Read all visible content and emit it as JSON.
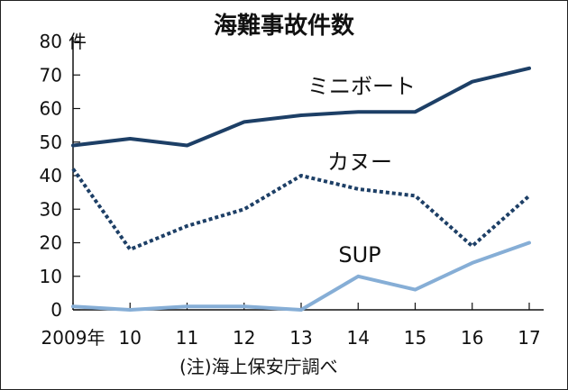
{
  "chart_data": {
    "type": "line",
    "title": "海難事故件数",
    "ylabel": "件",
    "xlabel": "",
    "categories": [
      "2009年",
      "10",
      "11",
      "12",
      "13",
      "14",
      "15",
      "16",
      "17"
    ],
    "ylim": [
      0,
      80
    ],
    "yticks": [
      "0",
      "10",
      "20",
      "30",
      "40",
      "50",
      "60",
      "70",
      "80"
    ],
    "grid": false,
    "series": [
      {
        "name": "ミニボート",
        "values": [
          49,
          51,
          49,
          56,
          58,
          59,
          59,
          68,
          72
        ],
        "color": "#1d3f66",
        "style": "solid"
      },
      {
        "name": "カヌー",
        "values": [
          42,
          18,
          25,
          30,
          40,
          36,
          34,
          19,
          34
        ],
        "color": "#1d3f66",
        "style": "dotted"
      },
      {
        "name": "SUP",
        "values": [
          1,
          0,
          1,
          1,
          0,
          10,
          6,
          14,
          20
        ],
        "color": "#86aed6",
        "style": "solid"
      }
    ],
    "source_note": "(注)海上保安庁調べ"
  }
}
